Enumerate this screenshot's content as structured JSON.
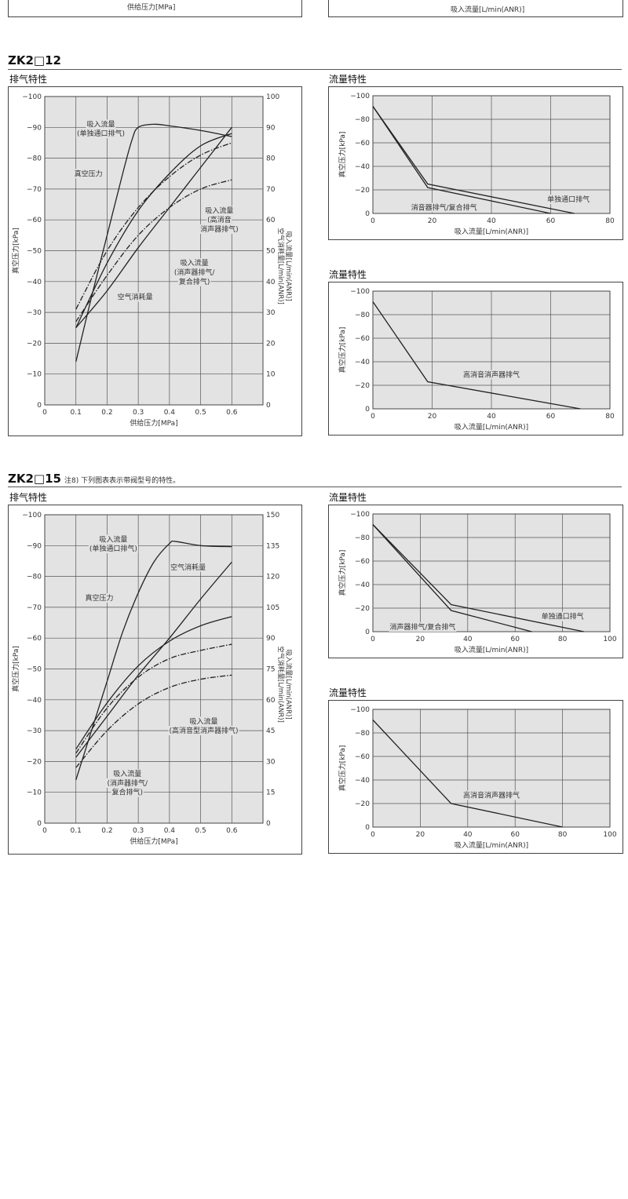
{
  "top_fragment": {
    "left_xlabel": "供给压力[MPa]",
    "right_xlabel": "吸入流量[L/min(ANR)]"
  },
  "sections": [
    {
      "title": "ZK2□12",
      "note": "",
      "exhaust_title": "排气特性",
      "flow1_title": "流量特性",
      "flow2_title": "流量特性"
    },
    {
      "title": "ZK2□15",
      "note": "注8) 下列图表表示带阀型号的特性。",
      "exhaust_title": "排气特性",
      "flow1_title": "流量特性",
      "flow2_title": "流量特性"
    }
  ],
  "chart_data": [
    {
      "id": "zk12_exhaust",
      "type": "line",
      "xlabel": "供给压力[MPa]",
      "ylabel": "真空压力[kPa]",
      "y2label": "吸入流量[L/min(ANR)] 空气消耗量[L/min(ANR)]",
      "xlim": [
        0,
        0.7
      ],
      "xticks": [
        0,
        0.1,
        0.2,
        0.3,
        0.4,
        0.5,
        0.6
      ],
      "xticklabels": [
        "0",
        "0.1",
        "0.2",
        "0.3",
        "0.4",
        "0.5",
        "0.6"
      ],
      "ylim": [
        0,
        -100
      ],
      "yticks": [
        0,
        -10,
        -20,
        -30,
        -40,
        -50,
        -60,
        -70,
        -80,
        -90,
        -100
      ],
      "yticklabels": [
        "0",
        "−10",
        "−20",
        "−30",
        "−40",
        "−50",
        "−60",
        "−70",
        "−80",
        "−90",
        "−100"
      ],
      "y2lim": [
        0,
        100
      ],
      "y2ticklabels": [
        "0",
        "10",
        "20",
        "30",
        "40",
        "50",
        "60",
        "70",
        "80",
        "90",
        "100"
      ],
      "grid": true,
      "series": [
        {
          "style": "solid",
          "axis": "right",
          "x": [
            0.1,
            0.15,
            0.2,
            0.25,
            0.28,
            0.3,
            0.35,
            0.4,
            0.5,
            0.6
          ],
          "y": [
            14,
            35,
            55,
            75,
            86,
            90,
            91,
            90.5,
            89,
            87
          ]
        },
        {
          "style": "solid",
          "axis": "left",
          "x": [
            0.1,
            0.2,
            0.3,
            0.4,
            0.5,
            0.6
          ],
          "y": [
            -25,
            -46,
            -63,
            -75,
            -84,
            -88
          ]
        },
        {
          "style": "dashdot",
          "axis": "right",
          "x": [
            0.1,
            0.2,
            0.3,
            0.4,
            0.5,
            0.6
          ],
          "y": [
            31,
            50,
            64,
            74,
            81,
            85
          ]
        },
        {
          "style": "dashdot",
          "axis": "right",
          "x": [
            0.1,
            0.2,
            0.3,
            0.4,
            0.5,
            0.6
          ],
          "y": [
            27,
            42,
            55,
            64,
            70,
            73
          ]
        },
        {
          "style": "solid",
          "axis": "right",
          "x": [
            0.1,
            0.2,
            0.3,
            0.4,
            0.5,
            0.6
          ],
          "y": [
            25,
            37,
            51,
            64,
            77,
            90
          ]
        }
      ],
      "annotations": [
        {
          "text": "吸入流量",
          "x": 0.18,
          "y": -91
        },
        {
          "text": "(单独通口排气)",
          "x": 0.18,
          "y": -88
        },
        {
          "text": "真空压力",
          "x": 0.14,
          "y": -75
        },
        {
          "text": "吸入流量",
          "x": 0.56,
          "y": -63
        },
        {
          "text": "(高消音",
          "x": 0.56,
          "y": -60
        },
        {
          "text": "消声器排气)",
          "x": 0.56,
          "y": -57
        },
        {
          "text": "吸入流量",
          "x": 0.48,
          "y": -46
        },
        {
          "text": "(消声器排气/",
          "x": 0.48,
          "y": -43
        },
        {
          "text": "复合排气)",
          "x": 0.48,
          "y": -40
        },
        {
          "text": "空气消耗量",
          "x": 0.29,
          "y": -35
        }
      ]
    },
    {
      "id": "zk12_flow1",
      "type": "line",
      "xlabel": "吸入流量[L/min(ANR)]",
      "ylabel": "真空压力[kPa]",
      "xlim": [
        0,
        80
      ],
      "xticks": [
        0,
        20,
        40,
        60,
        80
      ],
      "xticklabels": [
        "0",
        "20",
        "40",
        "60",
        "80"
      ],
      "ylim": [
        0,
        -100
      ],
      "yticks": [
        0,
        -20,
        -40,
        -60,
        -80,
        -100
      ],
      "yticklabels": [
        "0",
        "−20",
        "−40",
        "−60",
        "−80",
        "−100"
      ],
      "grid": true,
      "series": [
        {
          "name": "单独通口排气",
          "x": [
            0,
            18.5,
            68
          ],
          "y": [
            -91,
            -25,
            0
          ]
        },
        {
          "name": "消音器排气/复合排气",
          "x": [
            0,
            18.5,
            60
          ],
          "y": [
            -91,
            -22,
            0
          ]
        }
      ],
      "annotations": [
        {
          "text": "单独通口排气",
          "x": 66,
          "y": -12
        },
        {
          "text": "消音器排气/复合排气",
          "x": 24,
          "y": -5
        }
      ]
    },
    {
      "id": "zk12_flow2",
      "type": "line",
      "xlabel": "吸入流量[L/min(ANR)]",
      "ylabel": "真空压力[kPa]",
      "xlim": [
        0,
        80
      ],
      "xticks": [
        0,
        20,
        40,
        60,
        80
      ],
      "xticklabels": [
        "0",
        "20",
        "40",
        "60",
        "80"
      ],
      "ylim": [
        0,
        -100
      ],
      "yticks": [
        0,
        -20,
        -40,
        -60,
        -80,
        -100
      ],
      "yticklabels": [
        "0",
        "−20",
        "−40",
        "−60",
        "−80",
        "−100"
      ],
      "grid": true,
      "series": [
        {
          "name": "高消音消声器排气",
          "x": [
            0,
            18.5,
            70
          ],
          "y": [
            -91,
            -23,
            0
          ]
        }
      ],
      "annotations": [
        {
          "text": "高消音消声器排气",
          "x": 40,
          "y": -29
        }
      ]
    },
    {
      "id": "zk15_exhaust",
      "type": "line",
      "xlabel": "供给压力[MPa]",
      "ylabel": "真空压力[kPa]",
      "y2label": "吸入流量[L/min(ANR)] 空气消耗量[L/min(ANR)]",
      "xlim": [
        0,
        0.7
      ],
      "xticks": [
        0,
        0.1,
        0.2,
        0.3,
        0.4,
        0.5,
        0.6
      ],
      "xticklabels": [
        "0",
        "0.1",
        "0.2",
        "0.3",
        "0.4",
        "0.5",
        "0.6"
      ],
      "ylim": [
        0,
        -100
      ],
      "yticks": [
        0,
        -10,
        -20,
        -30,
        -40,
        -50,
        -60,
        -70,
        -80,
        -90,
        -100
      ],
      "yticklabels": [
        "0",
        "−10",
        "−20",
        "−30",
        "−40",
        "−50",
        "−60",
        "−70",
        "−80",
        "−90",
        "−100"
      ],
      "y2lim": [
        0,
        150
      ],
      "y2ticklabels": [
        "0",
        "15",
        "30",
        "45",
        "60",
        "75",
        "90",
        "105",
        "120",
        "135",
        "150"
      ],
      "grid": true,
      "series": [
        {
          "style": "solid",
          "axis": "right",
          "x": [
            0.1,
            0.15,
            0.2,
            0.25,
            0.3,
            0.35,
            0.4,
            0.42,
            0.5,
            0.6
          ],
          "y": [
            21,
            45,
            69,
            93,
            112,
            127,
            136,
            137,
            135,
            134.5
          ]
        },
        {
          "style": "solid",
          "axis": "left",
          "x": [
            0.1,
            0.2,
            0.3,
            0.4,
            0.5,
            0.6
          ],
          "y": [
            -24,
            -39,
            -51,
            -59,
            -64,
            -67
          ]
        },
        {
          "style": "dashdot",
          "axis": "right",
          "x": [
            0.1,
            0.2,
            0.3,
            0.4,
            0.5,
            0.6
          ],
          "y": [
            34,
            56,
            71,
            80,
            84,
            87
          ]
        },
        {
          "style": "dashdot",
          "axis": "right",
          "x": [
            0.1,
            0.2,
            0.3,
            0.4,
            0.5,
            0.6
          ],
          "y": [
            27,
            45,
            58,
            66,
            70,
            72
          ]
        },
        {
          "style": "solid",
          "axis": "right",
          "x": [
            0.1,
            0.2,
            0.3,
            0.4,
            0.5,
            0.6
          ],
          "y": [
            32,
            52,
            72,
            90,
            109,
            127
          ]
        }
      ],
      "annotations": [
        {
          "text": "吸入流量",
          "x": 0.22,
          "y": -92
        },
        {
          "text": "(单独通口排气)",
          "x": 0.22,
          "y": -89
        },
        {
          "text": "空气消耗量",
          "x": 0.46,
          "y": -83
        },
        {
          "text": "真空压力",
          "x": 0.175,
          "y": -73
        },
        {
          "text": "吸入流量",
          "x": 0.51,
          "y": -33
        },
        {
          "text": "(高消音型消声器排气)",
          "x": 0.51,
          "y": -30
        },
        {
          "text": "吸入流量",
          "x": 0.265,
          "y": -16
        },
        {
          "text": "(消声器排气/",
          "x": 0.265,
          "y": -13
        },
        {
          "text": "复合排气)",
          "x": 0.265,
          "y": -10
        }
      ]
    },
    {
      "id": "zk15_flow1",
      "type": "line",
      "xlabel": "吸入流量[L/min(ANR)]",
      "ylabel": "真空压力[kPa]",
      "xlim": [
        0,
        100
      ],
      "xticks": [
        0,
        20,
        40,
        60,
        80,
        100
      ],
      "xticklabels": [
        "0",
        "20",
        "40",
        "60",
        "80",
        "100"
      ],
      "ylim": [
        0,
        -100
      ],
      "yticks": [
        0,
        -20,
        -40,
        -60,
        -80,
        -100
      ],
      "yticklabels": [
        "0",
        "−20",
        "−40",
        "−60",
        "−80",
        "−100"
      ],
      "grid": true,
      "series": [
        {
          "name": "单独通口排气",
          "x": [
            0,
            33,
            89
          ],
          "y": [
            -91,
            -23,
            0
          ]
        },
        {
          "name": "消声器排气/复合排气",
          "x": [
            0,
            33,
            67
          ],
          "y": [
            -91,
            -18,
            0
          ]
        }
      ],
      "annotations": [
        {
          "text": "单独通口排气",
          "x": 80,
          "y": -13
        },
        {
          "text": "消声器排气/复合排气",
          "x": 21,
          "y": -4
        }
      ]
    },
    {
      "id": "zk15_flow2",
      "type": "line",
      "xlabel": "吸入流量[L/min(ANR)]",
      "ylabel": "真空压力[kPa]",
      "xlim": [
        0,
        100
      ],
      "xticks": [
        0,
        20,
        40,
        60,
        80,
        100
      ],
      "xticklabels": [
        "0",
        "20",
        "40",
        "60",
        "80",
        "100"
      ],
      "ylim": [
        0,
        -100
      ],
      "yticks": [
        0,
        -20,
        -40,
        -60,
        -80,
        -100
      ],
      "yticklabels": [
        "0",
        "−20",
        "−40",
        "−60",
        "−80",
        "−100"
      ],
      "grid": true,
      "series": [
        {
          "name": "高消音消声器排气",
          "x": [
            0,
            33,
            80
          ],
          "y": [
            -91,
            -20,
            0
          ]
        }
      ],
      "annotations": [
        {
          "text": "高消音消声器排气",
          "x": 50,
          "y": -27
        }
      ]
    }
  ]
}
